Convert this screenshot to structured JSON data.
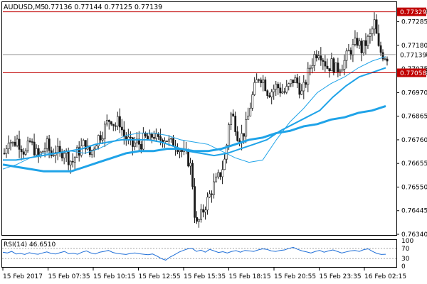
{
  "header": {
    "symbol_timeframe": "AUDUSD,M5",
    "ohlc": "0.77136 0.77144 0.77125 0.77139"
  },
  "rsi": {
    "label": "RSI(14) 46.6510",
    "levels": [
      "100",
      "70",
      "30",
      "0"
    ]
  },
  "price_axis": {
    "ticks": [
      "0.77329",
      "0.77285",
      "0.77180",
      "0.77139",
      "0.77075",
      "0.77058",
      "0.76970",
      "0.76865",
      "0.76760",
      "0.76655",
      "0.76550",
      "0.76445",
      "0.76340"
    ],
    "resistance_label": "0.77329",
    "current_label": "0.77139",
    "support_label": "0.77058"
  },
  "time_axis": {
    "labels": [
      "15 Feb 2017",
      "15 Feb 07:35",
      "15 Feb 10:15",
      "15 Feb 12:55",
      "15 Feb 15:35",
      "15 Feb 18:15",
      "15 Feb 20:55",
      "15 Feb 23:35",
      "16 Feb 02:15"
    ]
  },
  "colors": {
    "candle": "#1a1a1a",
    "ma": "#1fa3e8",
    "hline": "#c00000",
    "current_line": "#808080",
    "rsi": "#1f6fd8"
  },
  "chart_data": {
    "type": "candlestick",
    "ylim": [
      0.7634,
      0.7735
    ],
    "closes": [
      0.767,
      0.7677,
      0.7674,
      0.7676,
      0.7673,
      0.767,
      0.7675,
      0.7672,
      0.7668,
      0.7671,
      0.7674,
      0.7669,
      0.7672,
      0.7669,
      0.7672,
      0.7668,
      0.7666,
      0.767,
      0.7672,
      0.7675,
      0.7669,
      0.7673,
      0.7677,
      0.7679,
      0.7683,
      0.7686,
      0.7682,
      0.7685,
      0.7678,
      0.7676,
      0.7673,
      0.7675,
      0.7674,
      0.7677,
      0.7675,
      0.7679,
      0.7675,
      0.7677,
      0.7677,
      0.7674,
      0.7675,
      0.7673,
      0.767,
      0.7668,
      0.7663,
      0.7637,
      0.7641,
      0.7646,
      0.765,
      0.7655,
      0.7658,
      0.7662,
      0.7668,
      0.7688,
      0.7685,
      0.7677,
      0.7678,
      0.7683,
      0.7693,
      0.77,
      0.7705,
      0.7702,
      0.7697,
      0.7698,
      0.77,
      0.7698,
      0.7697,
      0.77,
      0.7703,
      0.7701,
      0.7696,
      0.7703,
      0.7709,
      0.7714,
      0.7716,
      0.7712,
      0.7708,
      0.771,
      0.7707,
      0.7709,
      0.7711,
      0.7715,
      0.7717,
      0.772,
      0.7716,
      0.7719,
      0.7722,
      0.7728,
      0.7716,
      0.7714,
      0.7713
    ],
    "ma_fast": [
      0.7663,
      0.7665,
      0.7668,
      0.767,
      0.767,
      0.7671,
      0.767,
      0.7672,
      0.7675,
      0.7678,
      0.7679,
      0.7679,
      0.7678,
      0.7676,
      0.7675,
      0.7674,
      0.7671,
      0.7668,
      0.7666,
      0.7667,
      0.7676,
      0.7684,
      0.769,
      0.7697,
      0.7701,
      0.7704,
      0.7708,
      0.7711,
      0.7713
    ],
    "ma_mid": [
      0.7667,
      0.7667,
      0.7668,
      0.7669,
      0.767,
      0.7671,
      0.7672,
      0.7674,
      0.7675,
      0.7676,
      0.7676,
      0.7676,
      0.7675,
      0.7673,
      0.7671,
      0.767,
      0.7669,
      0.767,
      0.7672,
      0.7674,
      0.7676,
      0.768,
      0.7683,
      0.7686,
      0.7689,
      0.7695,
      0.77,
      0.7704,
      0.7706,
      0.7708
    ],
    "ma_slow": [
      0.7665,
      0.7664,
      0.7663,
      0.7662,
      0.7662,
      0.7662,
      0.7664,
      0.7666,
      0.7668,
      0.767,
      0.7671,
      0.7671,
      0.7672,
      0.7672,
      0.7671,
      0.7671,
      0.7672,
      0.7674,
      0.7676,
      0.7677,
      0.7679,
      0.768,
      0.7682,
      0.7683,
      0.7685,
      0.7686,
      0.7688,
      0.7689,
      0.7691
    ],
    "rsi_values": [
      55,
      52,
      58,
      48,
      50,
      46,
      53,
      49,
      47,
      52,
      56,
      50,
      48,
      53,
      58,
      49,
      51,
      47,
      55,
      60,
      52,
      48,
      55,
      58,
      62,
      54,
      50,
      48,
      46,
      50,
      52,
      49,
      47,
      45,
      48,
      40,
      30,
      24,
      36,
      45,
      55,
      62,
      68,
      70,
      58,
      63,
      55,
      66,
      60,
      54,
      57,
      52,
      58,
      61,
      55,
      62,
      60,
      58,
      64,
      68,
      66,
      60,
      58,
      62,
      64,
      70,
      74,
      66,
      60,
      56,
      52,
      58,
      62,
      55,
      60,
      64,
      58,
      52,
      56,
      60,
      62,
      58,
      65,
      68,
      58,
      50,
      46,
      47
    ],
    "resistance": 0.77329,
    "support": 0.77058,
    "current": 0.77139
  }
}
